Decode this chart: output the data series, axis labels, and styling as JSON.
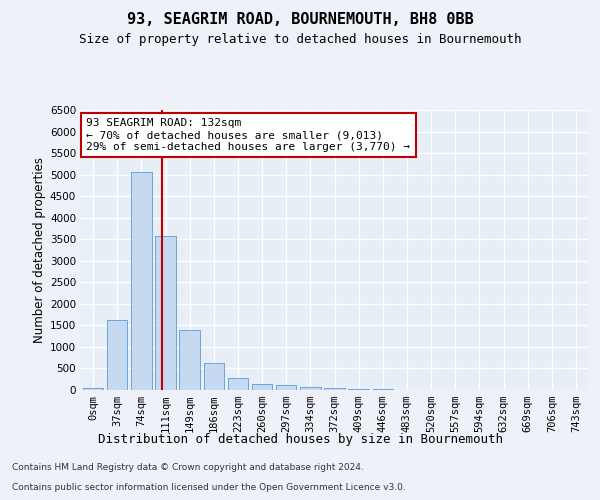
{
  "title": "93, SEAGRIM ROAD, BOURNEMOUTH, BH8 0BB",
  "subtitle": "Size of property relative to detached houses in Bournemouth",
  "xlabel": "Distribution of detached houses by size in Bournemouth",
  "ylabel": "Number of detached properties",
  "bar_color": "#c5d9f1",
  "bar_edge_color": "#5b9bd5",
  "categories": [
    "0sqm",
    "37sqm",
    "74sqm",
    "111sqm",
    "149sqm",
    "186sqm",
    "223sqm",
    "260sqm",
    "297sqm",
    "334sqm",
    "372sqm",
    "409sqm",
    "446sqm",
    "483sqm",
    "520sqm",
    "557sqm",
    "594sqm",
    "632sqm",
    "669sqm",
    "706sqm",
    "743sqm"
  ],
  "values": [
    50,
    1620,
    5050,
    3580,
    1400,
    625,
    275,
    150,
    110,
    75,
    55,
    30,
    12,
    5,
    3,
    2,
    1,
    1,
    0,
    0,
    0
  ],
  "vline_x": 2.85,
  "vline_color": "#c00000",
  "annotation_text": "93 SEAGRIM ROAD: 132sqm\n← 70% of detached houses are smaller (9,013)\n29% of semi-detached houses are larger (3,770) →",
  "annotation_box_color": "#ffffff",
  "annotation_box_edge": "#c00000",
  "ylim": [
    0,
    6500
  ],
  "yticks": [
    0,
    500,
    1000,
    1500,
    2000,
    2500,
    3000,
    3500,
    4000,
    4500,
    5000,
    5500,
    6000,
    6500
  ],
  "footer_line1": "Contains HM Land Registry data © Crown copyright and database right 2024.",
  "footer_line2": "Contains public sector information licensed under the Open Government Licence v3.0.",
  "background_color": "#eef2f8",
  "plot_bg_color": "#e8eef6",
  "title_fontsize": 11,
  "subtitle_fontsize": 9,
  "annotation_fontsize": 8,
  "ylabel_fontsize": 8.5,
  "xlabel_fontsize": 9,
  "tick_fontsize": 7.5,
  "footer_fontsize": 6.5
}
